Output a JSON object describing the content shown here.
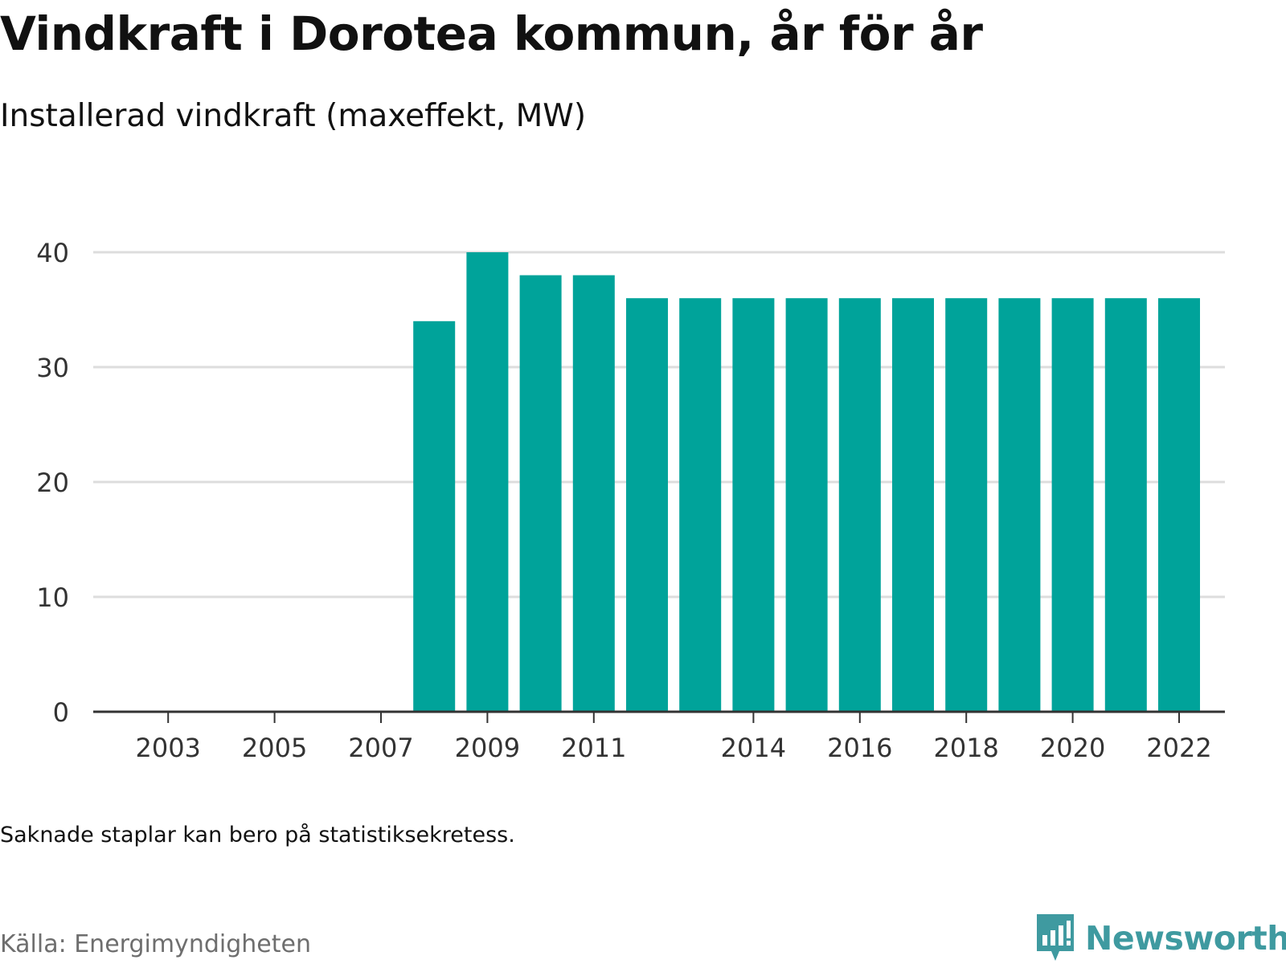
{
  "header": {
    "title": "Vindkraft i Dorotea kommun, år för år",
    "subtitle": "Installerad vindkraft (maxeffekt, MW)"
  },
  "footer": {
    "note": "Saknade staplar kan bero på statistiksekretess.",
    "source": "Källa: Energimyndigheten",
    "brand": "Newsworthy"
  },
  "colors": {
    "bar": "#00a39a",
    "grid": "#dddddd",
    "axis": "#333333",
    "brand": "#3f9aa0"
  },
  "chart_data": {
    "type": "bar",
    "categories": [
      "2002",
      "2003",
      "2004",
      "2005",
      "2006",
      "2007",
      "2008",
      "2009",
      "2010",
      "2011",
      "2012",
      "2013",
      "2014",
      "2015",
      "2016",
      "2017",
      "2018",
      "2019",
      "2020",
      "2021",
      "2022"
    ],
    "values": [
      null,
      null,
      null,
      null,
      null,
      null,
      34,
      40,
      38,
      38,
      36,
      36,
      36,
      36,
      36,
      36,
      36,
      36,
      36,
      36,
      36
    ],
    "x_tick_labels": [
      "2003",
      "2005",
      "2007",
      "2009",
      "2011",
      "2014",
      "2016",
      "2018",
      "2020",
      "2022"
    ],
    "y_ticks": [
      0,
      10,
      20,
      30,
      40
    ],
    "ylim": [
      0,
      40
    ],
    "grid": true
  }
}
